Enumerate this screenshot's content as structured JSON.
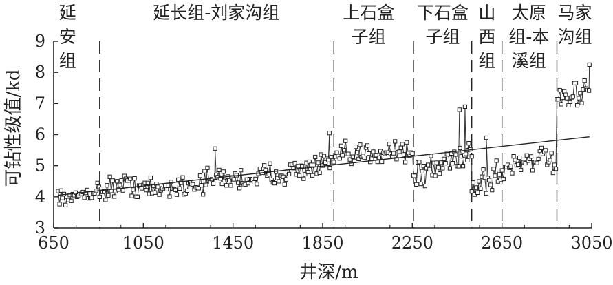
{
  "chart_data": {
    "type": "line",
    "xlabel": "井深/m",
    "ylabel": "可钻性级值/kd",
    "xlim": [
      650,
      3050
    ],
    "ylim": [
      3,
      9
    ],
    "xticks": [
      650,
      1050,
      1450,
      1850,
      2250,
      2650,
      3050
    ],
    "yticks": [
      3,
      4,
      5,
      6,
      7,
      8,
      9
    ],
    "markers": "open-square",
    "boundaries": [
      855,
      1900,
      2255,
      2515,
      2650,
      2895
    ],
    "strata": [
      {
        "lines": [
          "延",
          "安",
          "组"
        ],
        "x": 712
      },
      {
        "lines": [
          "延长组-刘家沟组"
        ],
        "x": 1375
      },
      {
        "lines": [
          "上石盒",
          "子组"
        ],
        "x": 2055
      },
      {
        "lines": [
          "下石盒",
          "子组"
        ],
        "x": 2385
      },
      {
        "lines": [
          "山",
          "西",
          "组"
        ],
        "x": 2583
      },
      {
        "lines": [
          "太原",
          "组-本",
          "溪组"
        ],
        "x": 2770
      },
      {
        "lines": [
          "马家",
          "沟组"
        ],
        "x": 2975
      }
    ],
    "trend": {
      "x": [
        670,
        3040
      ],
      "y": [
        4.05,
        5.93
      ]
    },
    "segments": [
      {
        "x": [
          670,
          700,
          730,
          760,
          790,
          820,
          850,
          855
        ],
        "y": [
          4.1,
          3.95,
          3.9,
          4.05,
          4.15,
          4.1,
          4.25,
          4.2
        ],
        "noise": 0.18
      },
      {
        "x": [
          855,
          900,
          1000,
          1100,
          1200,
          1300,
          1400,
          1500,
          1600,
          1700,
          1800,
          1900
        ],
        "y": [
          4.2,
          4.3,
          4.4,
          4.2,
          4.35,
          4.45,
          4.6,
          4.55,
          4.7,
          4.8,
          4.95,
          5.1
        ],
        "noise": 0.3
      },
      {
        "x": [
          1900,
          1950,
          2000,
          2050,
          2100,
          2150,
          2200,
          2255
        ],
        "y": [
          5.2,
          5.3,
          5.25,
          5.4,
          5.45,
          5.5,
          5.5,
          5.45
        ],
        "noise": 0.32
      },
      {
        "x": [
          2255,
          2300,
          2350,
          2400,
          2450,
          2500,
          2515
        ],
        "y": [
          4.6,
          4.8,
          4.9,
          5.1,
          5.3,
          5.5,
          5.3
        ],
        "noise": 0.4
      },
      {
        "x": [
          2515,
          2550,
          2600,
          2650
        ],
        "y": [
          4.3,
          4.45,
          4.6,
          4.75
        ],
        "noise": 0.45
      },
      {
        "x": [
          2650,
          2700,
          2750,
          2800,
          2850,
          2895
        ],
        "y": [
          4.8,
          5.05,
          5.2,
          5.25,
          5.2,
          5.0
        ],
        "noise": 0.32
      },
      {
        "x": [
          2895,
          2950,
          3000,
          3040
        ],
        "y": [
          7.0,
          7.1,
          7.3,
          7.7
        ],
        "noise": 0.3
      }
    ],
    "spikes": [
      {
        "x": [
          1370,
          1880,
          2460,
          2485,
          2496,
          2580,
          3040
        ],
        "y": [
          5.55,
          6.05,
          6.8,
          6.9,
          5.5,
          5.9,
          8.25
        ]
      }
    ],
    "grid": false,
    "legend": "none"
  }
}
